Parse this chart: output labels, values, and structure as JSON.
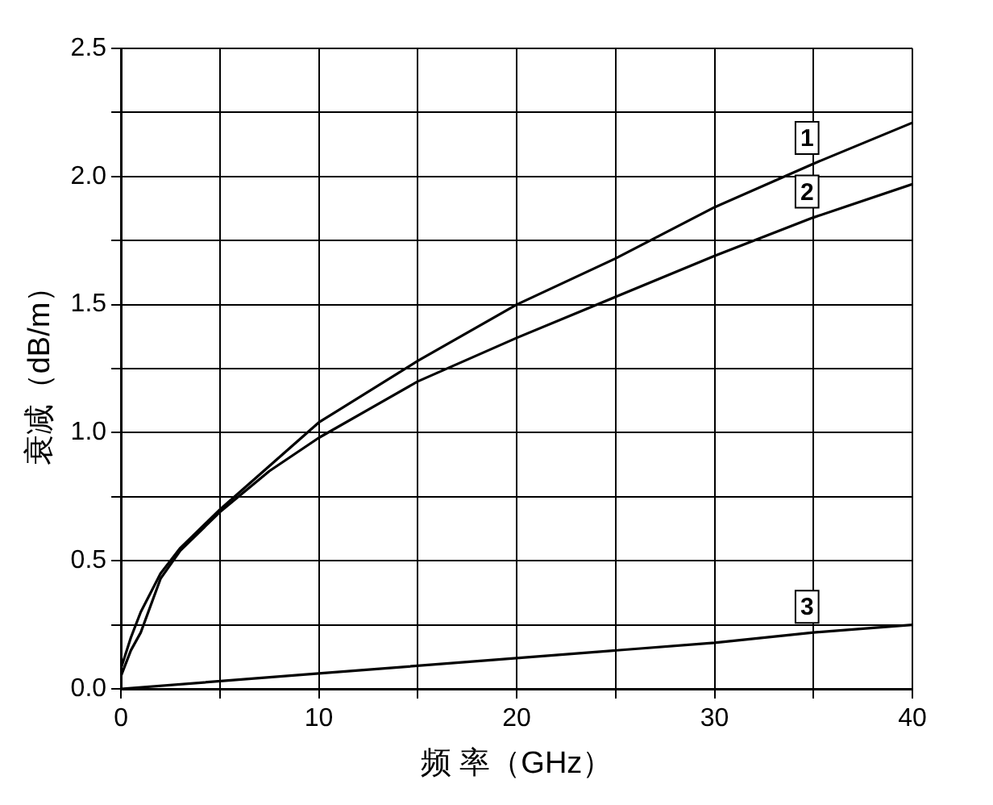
{
  "chart_data": {
    "type": "line",
    "xlabel": "频 率（GHz）",
    "ylabel": "衰减（dB/m）",
    "xlim": [
      0,
      40
    ],
    "xticks": [
      0,
      {
        "value": 5,
        "label": null
      },
      10,
      {
        "value": 15,
        "label": null
      },
      20,
      {
        "value": 25,
        "label": null
      },
      30,
      {
        "value": 35,
        "label": null
      },
      40
    ],
    "ylim": [
      0,
      2.5
    ],
    "yticks": [
      {
        "value": 0,
        "label": "0.0"
      },
      {
        "value": 0.25,
        "label": null
      },
      {
        "value": 0.5,
        "label": "0.5"
      },
      {
        "value": 0.75,
        "label": null
      },
      {
        "value": 1,
        "label": "1.0"
      },
      {
        "value": 1.25,
        "label": null
      },
      {
        "value": 1.5,
        "label": "1.5"
      },
      {
        "value": 1.75,
        "label": null
      },
      {
        "value": 2,
        "label": "2.0"
      },
      {
        "value": 2.25,
        "label": null
      },
      {
        "value": 2.5,
        "label": "2.5"
      }
    ],
    "grid": true,
    "legend": "right",
    "marker": "none",
    "line_style": "solid",
    "series": [
      {
        "name": "1",
        "color": "#000000",
        "x": [
          0,
          0.5,
          1,
          2,
          3,
          5,
          7.5,
          10,
          15,
          20,
          25,
          30,
          35,
          40
        ],
        "values": [
          0.08,
          0.2,
          0.3,
          0.45,
          0.55,
          0.7,
          0.87,
          1.04,
          1.28,
          1.5,
          1.68,
          1.88,
          2.05,
          2.21
        ]
      },
      {
        "name": "2",
        "color": "#000000",
        "x": [
          0,
          0.5,
          1,
          2,
          3,
          5,
          7.5,
          10,
          15,
          20,
          25,
          30,
          35,
          40
        ],
        "values": [
          0.05,
          0.15,
          0.22,
          0.43,
          0.54,
          0.69,
          0.85,
          0.98,
          1.2,
          1.37,
          1.53,
          1.69,
          1.84,
          1.97
        ]
      },
      {
        "name": "3",
        "color": "#000000",
        "x": [
          0,
          10,
          20,
          30,
          35,
          40
        ],
        "values": [
          0,
          0.06,
          0.12,
          0.18,
          0.22,
          0.25
        ]
      }
    ]
  }
}
